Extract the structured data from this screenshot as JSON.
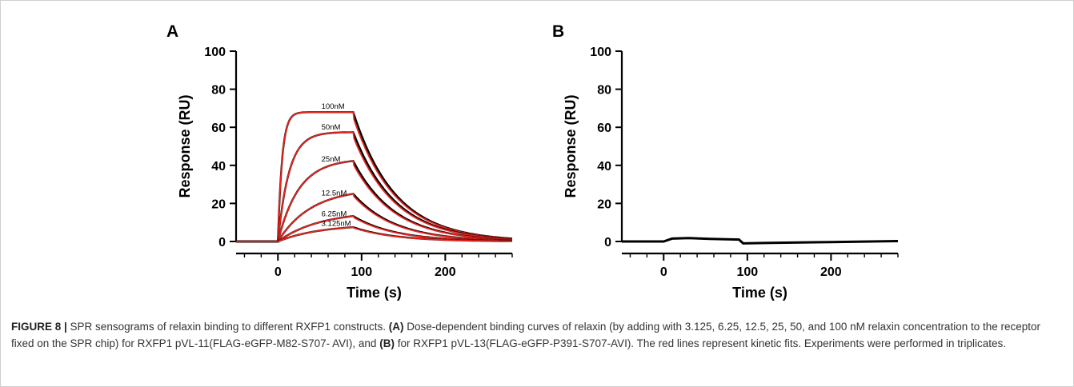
{
  "figure": {
    "number": "FIGURE 8 |",
    "caption_parts": [
      {
        "text": " SPR sensograms of relaxin binding to different RXFP1 constructs. ",
        "bold": false
      },
      {
        "text": "(A)",
        "bold": true
      },
      {
        "text": " Dose-dependent binding curves of relaxin (by adding with 3.125, 6.25, 12.5, 25, 50, and 100 nM relaxin concentration to the receptor fixed on the SPR chip) for RXFP1 pVL-11(FLAG-eGFP-M82-S707- AVI), and ",
        "bold": false
      },
      {
        "text": "(B)",
        "bold": true
      },
      {
        "text": " for RXFP1 pVL-13(FLAG-eGFP-P391-S707-AVI). The red lines represent kinetic fits. Experiments were performed in triplicates.",
        "bold": false
      }
    ]
  },
  "colors": {
    "data": "#000000",
    "fit": "#e8251f",
    "axis": "#000000",
    "caption": "#333333"
  },
  "chart_data": [
    {
      "panel_label": "A",
      "type": "line",
      "xlabel": "Time (s)",
      "ylabel": "Response (RU)",
      "xlim": [
        -50,
        280
      ],
      "ylim": [
        0,
        100
      ],
      "xticks": [
        0,
        100,
        200
      ],
      "yticks": [
        0,
        20,
        40,
        60,
        80,
        100
      ],
      "association_end_s": 90,
      "series": [
        {
          "name": "100nM",
          "plateau": 68,
          "ka": 0.2
        },
        {
          "name": "50nM",
          "plateau": 57.5,
          "ka": 0.075
        },
        {
          "name": "25nM",
          "plateau": 43.5,
          "ka": 0.04
        },
        {
          "name": "12.5nM",
          "plateau": 28,
          "ka": 0.025
        },
        {
          "name": "6.25nM",
          "plateau": 16,
          "ka": 0.02
        },
        {
          "name": "3.125nM",
          "plateau": 9,
          "ka": 0.02
        }
      ],
      "dissociation_kd": 0.02,
      "legend": "labels on curves"
    },
    {
      "panel_label": "B",
      "type": "line",
      "xlabel": "Time (s)",
      "ylabel": "Response (RU)",
      "xlim": [
        -50,
        280
      ],
      "ylim": [
        0,
        100
      ],
      "xticks": [
        0,
        100,
        200
      ],
      "yticks": [
        0,
        20,
        40,
        60,
        80,
        100
      ],
      "series": [
        {
          "x": [
            -50,
            0,
            10,
            30,
            60,
            90,
            95,
            120,
            200,
            280
          ],
          "y": [
            0,
            0,
            1.5,
            1.8,
            1.3,
            1.0,
            -1.0,
            -0.8,
            -0.3,
            0.2
          ]
        }
      ]
    }
  ]
}
